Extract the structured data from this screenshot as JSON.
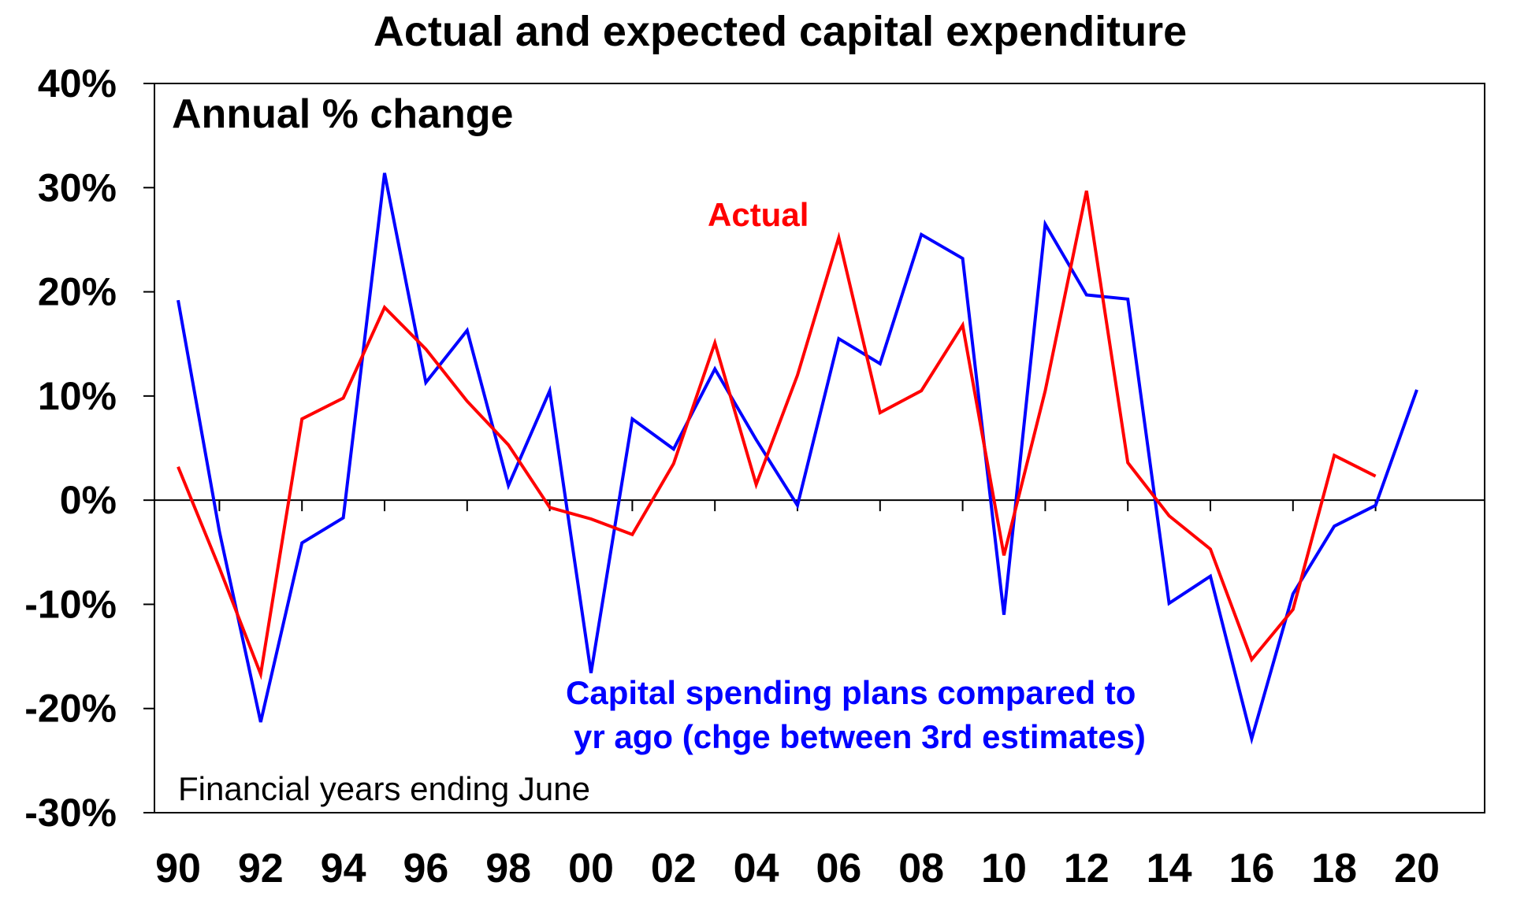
{
  "chart_data": {
    "type": "line",
    "title": "Actual and expected capital expenditure",
    "ylabel": "Annual % change",
    "xlabel": "Financial years ending June",
    "ylim": [
      -30,
      40
    ],
    "yticks": [
      40,
      30,
      20,
      10,
      0,
      -10,
      -20,
      -30
    ],
    "ytick_labels": [
      "40%",
      "30%",
      "20%",
      "10%",
      "0%",
      "-10%",
      "-20%",
      "-30%"
    ],
    "x_start_year": 1990,
    "x_end_year": 2020,
    "xtick_labels": [
      "90",
      "92",
      "94",
      "96",
      "98",
      "00",
      "02",
      "04",
      "06",
      "08",
      "10",
      "12",
      "14",
      "16",
      "18",
      "20"
    ],
    "series": [
      {
        "name": "Actual",
        "annotation": "Actual",
        "color": "#ff0000",
        "start_year": 1990,
        "values": [
          3.2,
          -6.5,
          -16.7,
          7.8,
          9.8,
          18.5,
          14.5,
          9.5,
          5.3,
          -0.7,
          -1.8,
          -3.3,
          3.5,
          15.1,
          1.5,
          12.0,
          25.2,
          8.4,
          10.5,
          16.8,
          -5.3,
          10.5,
          29.7,
          3.6,
          -1.5,
          -4.7,
          -15.3,
          -10.5,
          4.3,
          2.3
        ]
      },
      {
        "name": "Capital spending plans compared to yr ago (chge between 3rd estimates)",
        "annotation_lines": [
          "Capital spending plans compared to",
          "yr ago (chge between 3rd estimates)"
        ],
        "color": "#0000ff",
        "start_year": 1990,
        "values": [
          19.2,
          -3.0,
          -21.3,
          -4.1,
          -1.7,
          31.4,
          11.3,
          16.3,
          1.4,
          10.5,
          -16.6,
          7.8,
          4.9,
          12.6,
          5.8,
          -0.5,
          15.5,
          13.1,
          25.5,
          23.2,
          -11.0,
          26.5,
          19.7,
          19.3,
          -9.9,
          -7.3,
          -22.9,
          -9.0,
          -2.5,
          -0.5,
          10.6
        ]
      }
    ],
    "grid": false
  }
}
